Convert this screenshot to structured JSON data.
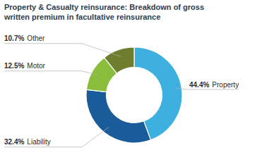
{
  "chart_data": {
    "type": "donut",
    "title": "Property & Casualty reinsurance: Breakdown of gross\nwritten premium in facultative reinsurance",
    "categories": [
      "Property",
      "Liability",
      "Motor",
      "Other"
    ],
    "values": [
      44.4,
      32.4,
      12.5,
      10.7
    ],
    "value_labels": [
      "44.4%",
      "32.4%",
      "12.5%",
      "10.7%"
    ],
    "colors": [
      "#3DB0E0",
      "#1A5C9A",
      "#8BBD3C",
      "#6E7E2E"
    ],
    "data_labels": true
  }
}
